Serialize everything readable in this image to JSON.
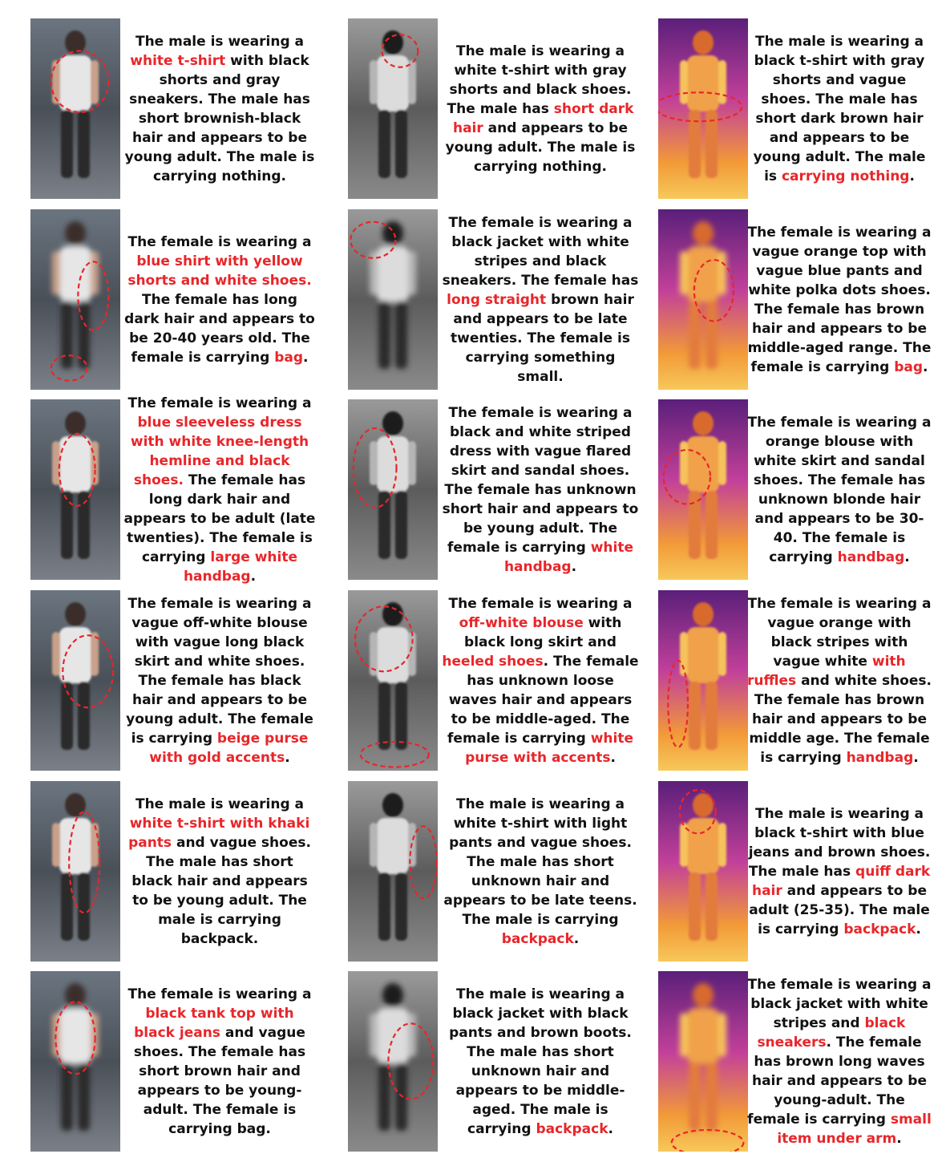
{
  "colors": {
    "text": "#111111",
    "highlight": "#e8262a",
    "annotation": "#e8262a"
  },
  "rows": [
    [
      {
        "modality": "rgb",
        "pose": "walk",
        "person": "male-white-tshirt-front",
        "marks": [
          [
            0.55,
            0.35,
            0.32,
            0.17
          ]
        ],
        "segments": [
          [
            "The male is wearing a ",
            0
          ],
          [
            "white t-shirt",
            1
          ],
          [
            " with black shorts and gray sneakers. The male has short brownish-black hair and appears to be young adult. The male is carrying nothing.",
            0
          ]
        ]
      },
      {
        "modality": "ir",
        "pose": "walk",
        "person": "male-white-tshirt-front",
        "marks": [
          [
            0.58,
            0.18,
            0.2,
            0.09
          ]
        ],
        "segments": [
          [
            "The male is wearing a white t-shirt with gray shorts and black shoes. The male has ",
            0
          ],
          [
            "short dark hair",
            1
          ],
          [
            " and appears to be young adult. The male is carrying nothing.",
            0
          ]
        ]
      },
      {
        "modality": "thermal",
        "pose": "walk",
        "person": "male-tshirt-front",
        "marks": [
          [
            0.45,
            0.49,
            0.48,
            0.08
          ]
        ],
        "segments": [
          [
            "The male is wearing a black t-shirt with gray shorts and vague shoes. The male has short dark brown hair and appears to be young adult. The male is ",
            0
          ],
          [
            "carrying nothing",
            1
          ],
          [
            ".",
            0
          ]
        ]
      }
    ],
    [
      {
        "modality": "rgb",
        "pose": "blur",
        "person": "female-blue-shirt",
        "marks": [
          [
            0.7,
            0.48,
            0.17,
            0.19
          ],
          [
            0.43,
            0.88,
            0.2,
            0.07
          ]
        ],
        "segments": [
          [
            "The female is wearing a ",
            0
          ],
          [
            "blue shirt with yellow shorts and white shoes.",
            1
          ],
          [
            " The female has long dark hair and appears to be 20-40 years old. The female is carrying ",
            0
          ],
          [
            "bag",
            1
          ],
          [
            ".",
            0
          ]
        ]
      },
      {
        "modality": "ir",
        "pose": "blur",
        "person": "female-jacket-blur",
        "marks": [
          [
            0.28,
            0.17,
            0.25,
            0.1
          ]
        ],
        "segments": [
          [
            "The female is wearing a black jacket with white stripes and black sneakers. The female has ",
            0
          ],
          [
            "long straight",
            1
          ],
          [
            " brown hair and appears to be late twenties. The female is carrying something small.",
            0
          ]
        ]
      },
      {
        "modality": "thermal",
        "pose": "blur",
        "person": "female-orange-top",
        "marks": [
          [
            0.62,
            0.45,
            0.22,
            0.17
          ]
        ],
        "segments": [
          [
            "The female is wearing a vague orange top with vague blue pants and white polka dots shoes. The female has brown hair and appears to be middle-aged range. The female is carrying ",
            0
          ],
          [
            "bag",
            1
          ],
          [
            ".",
            0
          ]
        ]
      }
    ],
    [
      {
        "modality": "rgb",
        "pose": "back",
        "person": "female-sleeveless-dress",
        "marks": [
          [
            0.52,
            0.39,
            0.2,
            0.2
          ]
        ],
        "segments": [
          [
            "The female is wearing a ",
            0
          ],
          [
            "blue sleeveless dress with white knee-length hemline and black shoes.",
            1
          ],
          [
            " The female has long dark hair and appears to be adult (late twenties). The female is carrying ",
            0
          ],
          [
            "large white handbag",
            1
          ],
          [
            ".",
            0
          ]
        ]
      },
      {
        "modality": "ir",
        "pose": "back",
        "person": "female-striped-dress",
        "marks": [
          [
            0.3,
            0.38,
            0.24,
            0.22
          ]
        ],
        "segments": [
          [
            "The female is wearing a black and white striped dress with vague flared skirt and sandal shoes. The female has unknown short hair and appears to be young adult. The female is carrying ",
            0
          ],
          [
            "white handbag",
            1
          ],
          [
            ".",
            0
          ]
        ]
      },
      {
        "modality": "thermal",
        "pose": "back",
        "person": "female-orange-blouse",
        "marks": [
          [
            0.32,
            0.43,
            0.26,
            0.15
          ]
        ],
        "segments": [
          [
            "The female is wearing a orange blouse with white skirt and sandal shoes. The female has unknown blonde hair and appears to be 30-40. The female is carrying ",
            0
          ],
          [
            "handbag",
            1
          ],
          [
            ".",
            0
          ]
        ]
      }
    ],
    [
      {
        "modality": "rgb",
        "pose": "night",
        "person": "female-off-white-blouse",
        "marks": [
          [
            0.64,
            0.45,
            0.28,
            0.2
          ]
        ],
        "segments": [
          [
            "The female is wearing a vague off-white blouse with vague long black skirt and white shoes. The female has black hair and appears to be young adult. The female is carrying ",
            0
          ],
          [
            "beige purse with gold accents",
            1
          ],
          [
            ".",
            0
          ]
        ]
      },
      {
        "modality": "ir",
        "pose": "night",
        "person": "female-blouse-long-skirt",
        "marks": [
          [
            0.4,
            0.27,
            0.32,
            0.18
          ],
          [
            0.52,
            0.91,
            0.38,
            0.07
          ]
        ],
        "segments": [
          [
            "The female is wearing a ",
            0
          ],
          [
            "off-white blouse",
            1
          ],
          [
            " with black long skirt and ",
            0
          ],
          [
            "heeled shoes",
            1
          ],
          [
            ". The female has unknown loose waves hair and appears to be middle-aged. The female is carrying ",
            0
          ],
          [
            "white purse with accents",
            1
          ],
          [
            ".",
            0
          ]
        ]
      },
      {
        "modality": "thermal",
        "pose": "night",
        "person": "female-orange-ruffles",
        "marks": [
          [
            0.22,
            0.63,
            0.11,
            0.24
          ]
        ],
        "segments": [
          [
            "The female is wearing a vague orange with black stripes with vague white ",
            0
          ],
          [
            "with ruffles",
            1
          ],
          [
            " and white shoes. The female has brown hair and appears to be middle age. The female is carrying ",
            0
          ],
          [
            "handbag",
            1
          ],
          [
            ".",
            0
          ]
        ]
      }
    ],
    [
      {
        "modality": "rgb",
        "pose": "side",
        "person": "male-backpack",
        "marks": [
          [
            0.6,
            0.45,
            0.17,
            0.28
          ]
        ],
        "segments": [
          [
            "The male is wearing a ",
            0
          ],
          [
            "white t-shirt with khaki pants",
            1
          ],
          [
            " and vague shoes. The male has short black hair and appears to be young adult. The male is carrying backpack.",
            0
          ]
        ]
      },
      {
        "modality": "ir",
        "pose": "side",
        "person": "male-backpack",
        "marks": [
          [
            0.84,
            0.45,
            0.15,
            0.2
          ]
        ],
        "segments": [
          [
            "The male is wearing a white t-shirt with light pants and vague shoes. The male has short unknown hair and appears to be late teens. The male is carrying ",
            0
          ],
          [
            "backpack",
            1
          ],
          [
            ".",
            0
          ]
        ]
      },
      {
        "modality": "thermal",
        "pose": "side",
        "person": "male-quiff",
        "marks": [
          [
            0.44,
            0.17,
            0.2,
            0.12
          ]
        ],
        "segments": [
          [
            "The male is wearing a black t-shirt with blue jeans and brown shoes. The male has ",
            0
          ],
          [
            "quiff dark hair",
            1
          ],
          [
            " and appears to be adult (25-35). The male is carrying ",
            0
          ],
          [
            "backpack",
            1
          ],
          [
            ".",
            0
          ]
        ]
      }
    ],
    [
      {
        "modality": "rgb",
        "pose": "dark",
        "person": "female-tank-top",
        "marks": [
          [
            0.5,
            0.37,
            0.22,
            0.2
          ]
        ],
        "segments": [
          [
            "The female is wearing a ",
            0
          ],
          [
            "black tank top with black jeans",
            1
          ],
          [
            " and vague shoes. The female has short brown hair and appears to be young-adult. The female is carrying bag.",
            0
          ]
        ]
      },
      {
        "modality": "ir",
        "pose": "dark",
        "person": "male-jacket-dark",
        "marks": [
          [
            0.7,
            0.5,
            0.25,
            0.21
          ]
        ],
        "segments": [
          [
            "The male is wearing a black jacket with black pants and brown boots. The male has short unknown hair and appears to be middle-aged. The male is carrying ",
            0
          ],
          [
            "backpack",
            1
          ],
          [
            ".",
            0
          ]
        ]
      },
      {
        "modality": "thermal",
        "pose": "dark",
        "person": "female-jacket-walk",
        "marks": [
          [
            0.55,
            0.95,
            0.4,
            0.07
          ]
        ],
        "segments": [
          [
            "The female is wearing a black jacket with white stripes and ",
            0
          ],
          [
            "black sneakers",
            1
          ],
          [
            ". The female has brown long waves hair and appears to be young-adult. The female is carrying ",
            0
          ],
          [
            "small item under arm",
            1
          ],
          [
            ".",
            0
          ]
        ]
      }
    ]
  ]
}
